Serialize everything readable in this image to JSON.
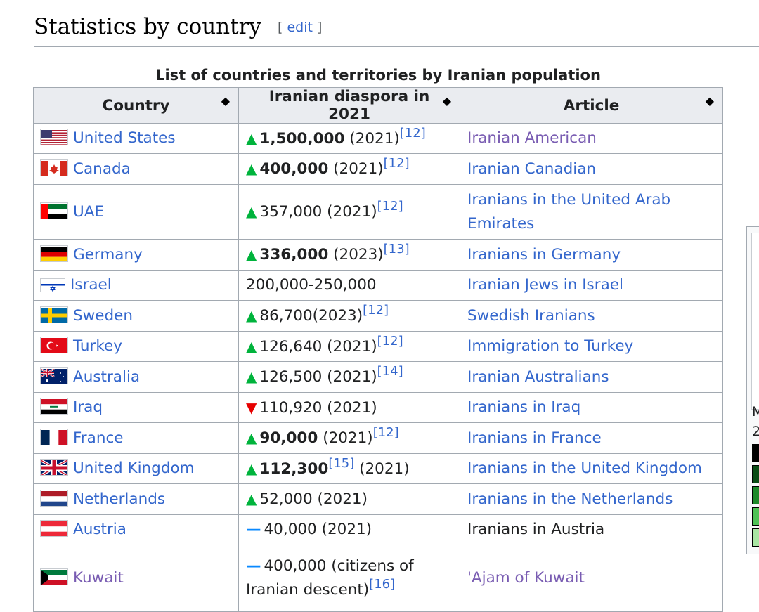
{
  "section": {
    "title": "Statistics by country",
    "edit_open": "[",
    "edit_label": "edit",
    "edit_close": "]"
  },
  "table": {
    "caption": "List of countries and territories by Iranian population",
    "headers": [
      "Country",
      "Iranian diaspora in 2021",
      "Article"
    ],
    "sort_icon": "sort-icon",
    "rows": [
      {
        "country": "United States",
        "trend": "up",
        "value": "1,500,000",
        "bold": true,
        "year": " (2021)",
        "ref": "[12]",
        "article": "Iranian American",
        "article_visited": true
      },
      {
        "country": "Canada",
        "trend": "up",
        "value": "400,000",
        "bold": true,
        "year": " (2021)",
        "ref": "[12]",
        "article": "Iranian Canadian"
      },
      {
        "country": "UAE",
        "trend": "up",
        "value": "357,000",
        "bold": false,
        "year": " (2021)",
        "ref": "[12]",
        "article": "Iranians in the United Arab Emirates"
      },
      {
        "country": "Germany",
        "trend": "up",
        "value": "336,000",
        "bold": true,
        "year": " (2023)",
        "ref": "[13]",
        "article": "Iranians in Germany"
      },
      {
        "country": "Israel",
        "trend": "none",
        "value": "200,000-250,000",
        "bold": false,
        "year": "",
        "ref": "",
        "article": "Iranian Jews in Israel"
      },
      {
        "country": "Sweden",
        "trend": "up",
        "value": "86,700",
        "bold": false,
        "year": "(2023)",
        "ref": "[12]",
        "article": "Swedish Iranians"
      },
      {
        "country": "Turkey",
        "trend": "up",
        "value": "126,640",
        "bold": false,
        "year": " (2021)",
        "ref": "[12]",
        "article": "Immigration to Turkey"
      },
      {
        "country": "Australia",
        "trend": "up",
        "value": "126,500",
        "bold": false,
        "year": " (2021)",
        "ref": "[14]",
        "article": "Iranian Australians"
      },
      {
        "country": "Iraq",
        "trend": "down",
        "value": "110,920",
        "bold": false,
        "year": " (2021)",
        "ref": "",
        "article": "Iranians in Iraq"
      },
      {
        "country": "France",
        "trend": "up",
        "value": "90,000",
        "bold": true,
        "year": " (2021)",
        "ref": "[12]",
        "article": "Iranians in France"
      },
      {
        "country": "United Kingdom",
        "trend": "up",
        "value": "112,300",
        "bold": true,
        "year": "",
        "ref": "[15]",
        "after_ref": " (2021)",
        "article": "Iranians in the United Kingdom"
      },
      {
        "country": "Netherlands",
        "trend": "up",
        "value": "52,000",
        "bold": false,
        "year": " (2021)",
        "ref": "",
        "article": "Iranians in the Netherlands"
      },
      {
        "country": "Austria",
        "trend": "steady",
        "value": "40,000",
        "bold": false,
        "year": " (2021)",
        "ref": "",
        "article": "Iranians in Austria",
        "article_plain": true
      },
      {
        "country": "Kuwait",
        "trend": "steady",
        "value": "400,000 (citizens of Iranian descent)",
        "bold": false,
        "year": "",
        "ref": "[16]",
        "article": "'Ajam of Kuwait",
        "article_visited": true
      }
    ]
  },
  "sidebar": {
    "text_1": "M",
    "text_2": "2"
  },
  "colors": {
    "link": "#3366cc",
    "visited": "#795cb2",
    "up": "#00b33c",
    "down": "#e60000",
    "steady": "#0a89ff",
    "header_bg": "#eaecf0",
    "border": "#a2a9b1"
  }
}
